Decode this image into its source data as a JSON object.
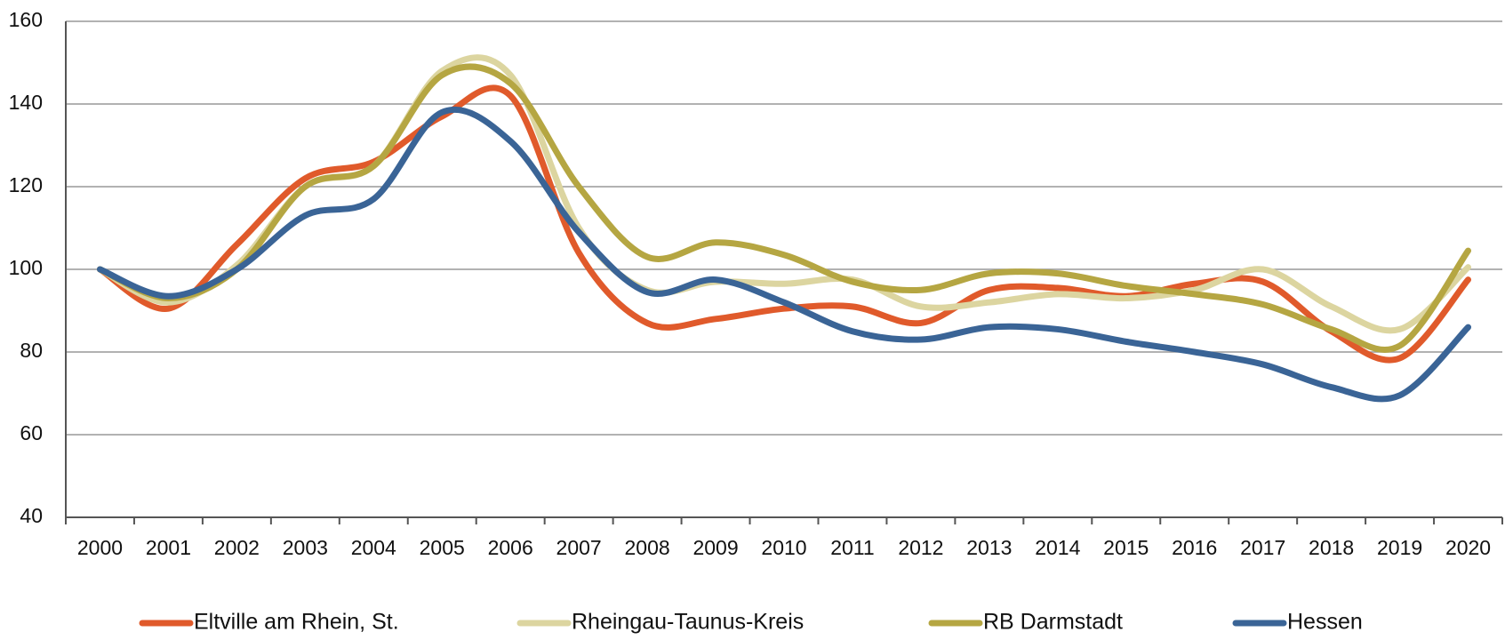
{
  "chart_data": {
    "type": "line",
    "categories": [
      "2000",
      "2001",
      "2002",
      "2003",
      "2004",
      "2005",
      "2006",
      "2007",
      "2008",
      "2009",
      "2010",
      "2011",
      "2012",
      "2013",
      "2014",
      "2015",
      "2016",
      "2017",
      "2018",
      "2019",
      "2020"
    ],
    "series": [
      {
        "name": "Eltville am Rhein, St.",
        "color": "#e05a2b",
        "values": [
          100,
          90.5,
          106,
          122,
          126,
          137,
          142,
          104,
          87,
          88,
          90.5,
          91,
          87,
          95,
          95.5,
          93.5,
          96.5,
          97,
          85,
          78.5,
          97.5
        ]
      },
      {
        "name": "Rheingau-Taunus-Kreis",
        "color": "#dcd5a0",
        "values": [
          100,
          92,
          101,
          120,
          125,
          148,
          147,
          110,
          95,
          97,
          96.5,
          97.5,
          91,
          92,
          94,
          93,
          95,
          100,
          91,
          85.5,
          100.5
        ]
      },
      {
        "name": "RB Darmstadt",
        "color": "#b5a642",
        "values": [
          100,
          93,
          100,
          120,
          125,
          147,
          145,
          120,
          103,
          106.5,
          103.5,
          97,
          95,
          99,
          99,
          96,
          94,
          91.5,
          85.5,
          81.5,
          104.5
        ]
      },
      {
        "name": "Hessen",
        "color": "#3a6496",
        "values": [
          100,
          93.5,
          100,
          113,
          117,
          138,
          131,
          109,
          94.5,
          97.5,
          92,
          85,
          83,
          86,
          85.5,
          82.5,
          80,
          77,
          71.5,
          69.5,
          86
        ]
      }
    ],
    "ylim": [
      40,
      160
    ],
    "yticks": [
      40,
      60,
      80,
      100,
      120,
      140,
      160
    ],
    "grid": true,
    "legend": "bottom"
  }
}
